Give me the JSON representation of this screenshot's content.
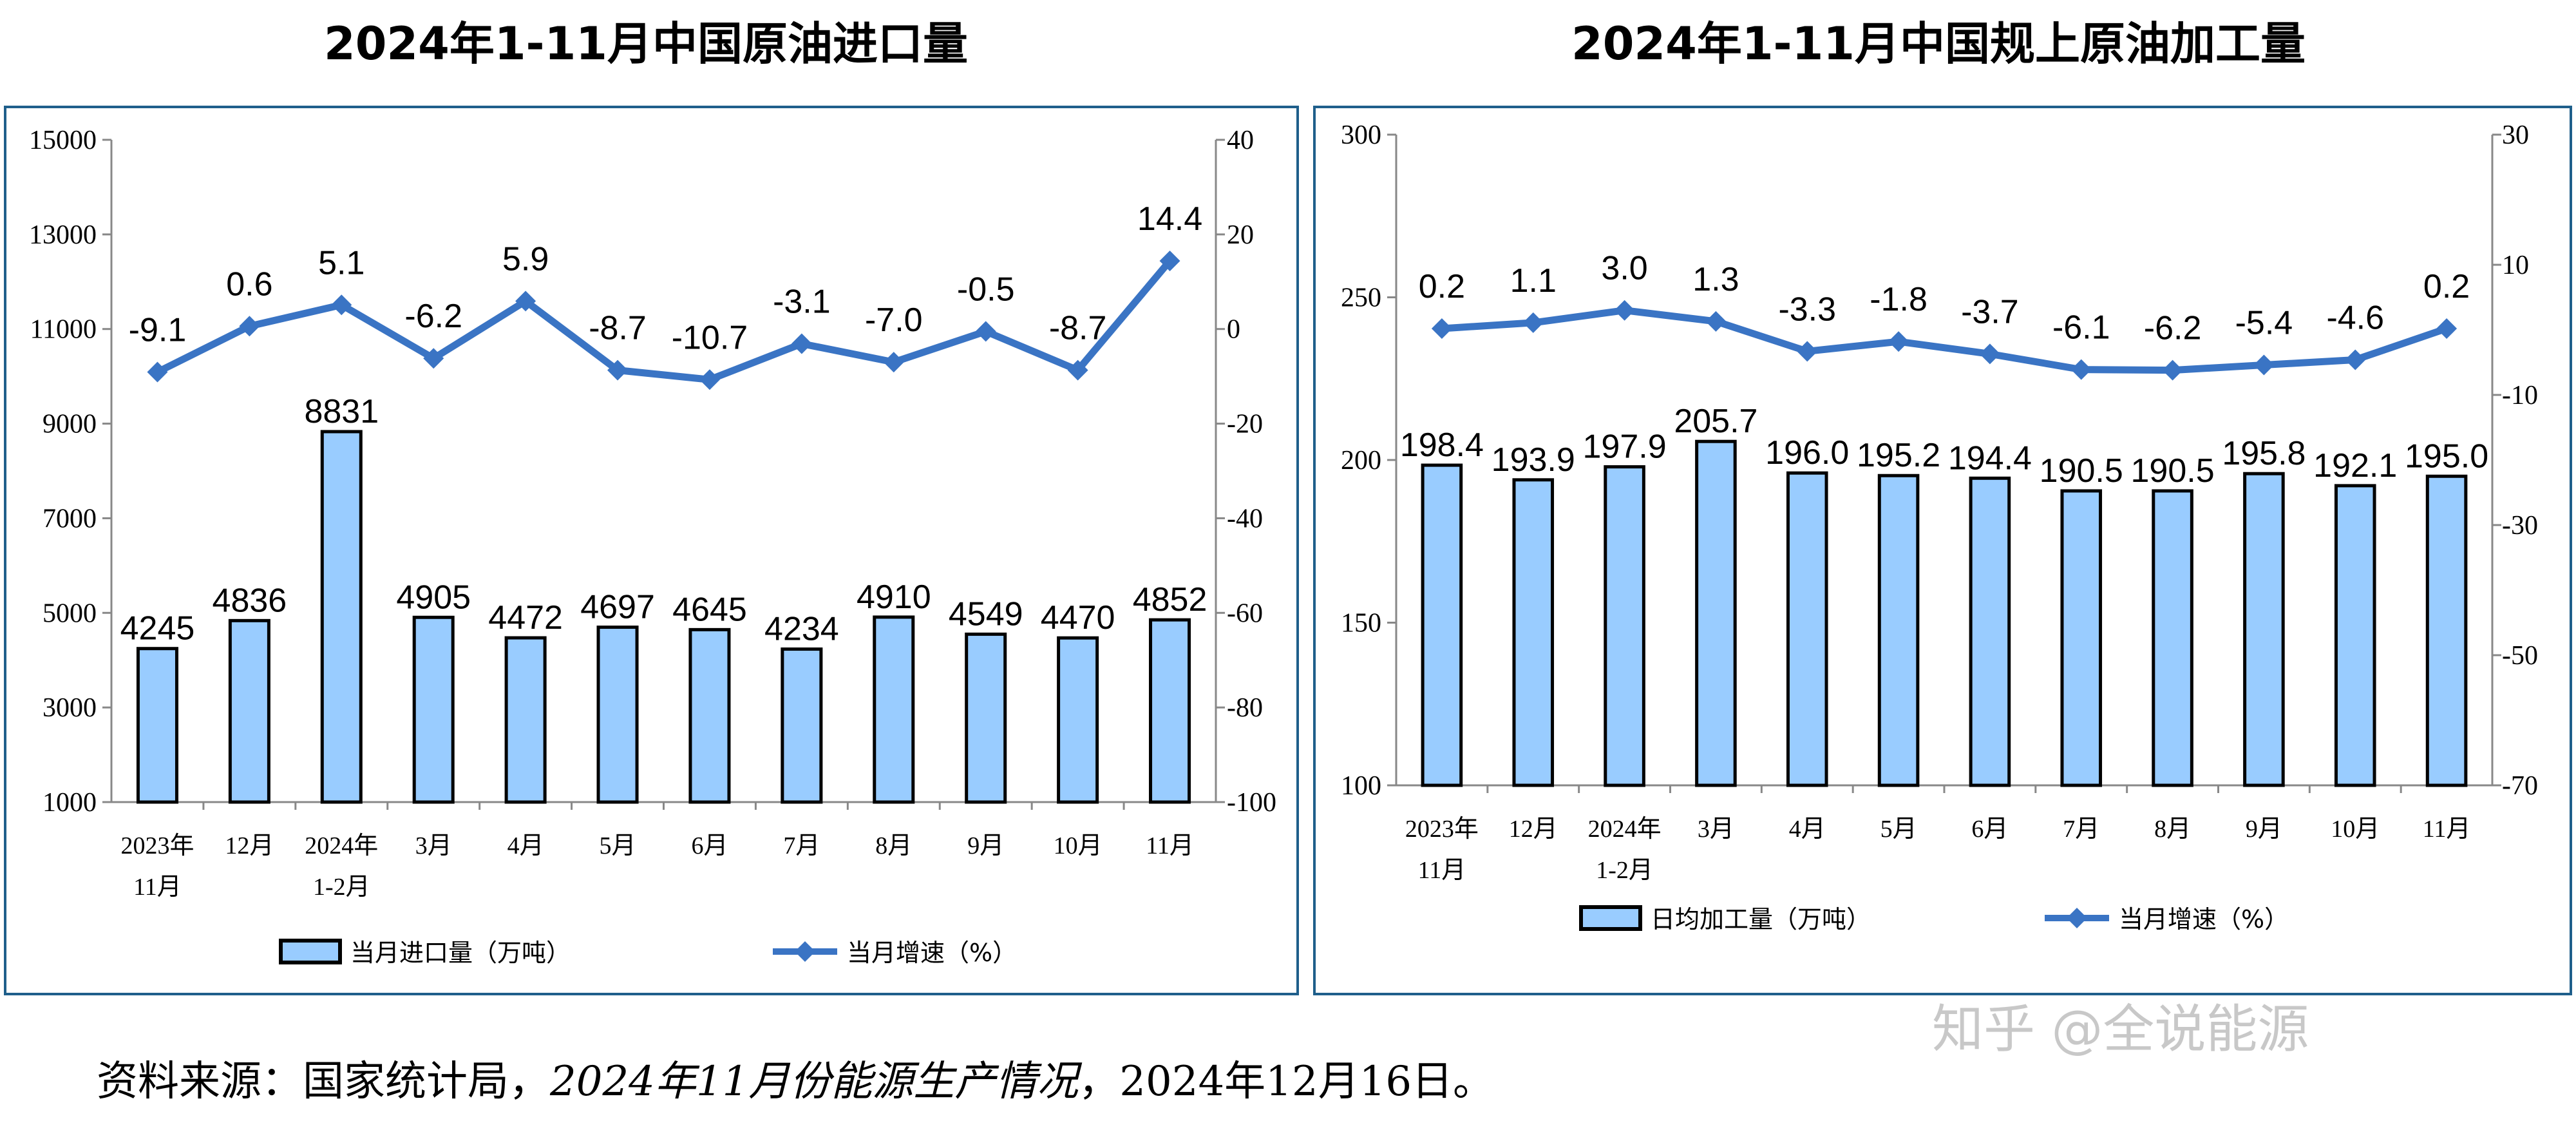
{
  "colors": {
    "bar_fill": "#99ccff",
    "bar_stroke": "#000000",
    "line": "#3a74c4",
    "panel_border": "#1f5f8b",
    "axis": "#888888"
  },
  "chart_data": [
    {
      "type": "bar+line",
      "title": "2024年1-11月中国原油进口量",
      "categories": [
        "2023年\n11月",
        "12月",
        "2024年\n1-2月",
        "3月",
        "4月",
        "5月",
        "6月",
        "7月",
        "8月",
        "9月",
        "10月",
        "11月"
      ],
      "y_left": {
        "range": [
          1000,
          15000
        ],
        "ticks": [
          1000,
          3000,
          5000,
          7000,
          9000,
          11000,
          13000,
          15000
        ]
      },
      "y_right": {
        "range": [
          -100,
          40
        ],
        "ticks": [
          -100,
          -80,
          -60,
          -40,
          -20,
          0,
          20,
          40
        ]
      },
      "series": [
        {
          "name": "当月进口量（万吨）",
          "type": "bar",
          "axis": "left",
          "values": [
            4245,
            4836,
            8831,
            4905,
            4472,
            4697,
            4645,
            4234,
            4910,
            4549,
            4470,
            4852
          ],
          "labels": [
            "4245",
            "4836",
            "8831",
            "4905",
            "4472",
            "4697",
            "4645",
            "4234",
            "4910",
            "4549",
            "4470",
            "4852"
          ]
        },
        {
          "name": "当月增速（%）",
          "type": "line",
          "axis": "right",
          "marker": "diamond",
          "values": [
            -9.1,
            0.6,
            5.1,
            -6.2,
            5.9,
            -8.7,
            -10.7,
            -3.1,
            -7.0,
            -0.5,
            -8.7,
            14.4
          ],
          "labels": [
            "-9.1",
            "0.6",
            "5.1",
            "-6.2",
            "5.9",
            "-8.7",
            "-10.7",
            "-3.1",
            "-7.0",
            "-0.5",
            "-8.7",
            "14.4"
          ]
        }
      ],
      "legend": "bottom",
      "grid": false
    },
    {
      "type": "bar+line",
      "title": "2024年1-11月中国规上原油加工量",
      "categories": [
        "2023年\n11月",
        "12月",
        "2024年\n1-2月",
        "3月",
        "4月",
        "5月",
        "6月",
        "7月",
        "8月",
        "9月",
        "10月",
        "11月"
      ],
      "y_left": {
        "range": [
          100,
          300
        ],
        "ticks": [
          100,
          150,
          200,
          250,
          300
        ]
      },
      "y_right": {
        "range": [
          -70,
          30
        ],
        "ticks": [
          -70,
          -50,
          -30,
          -10,
          10,
          30
        ]
      },
      "series": [
        {
          "name": "日均加工量（万吨）",
          "type": "bar",
          "axis": "left",
          "values": [
            198.4,
            193.9,
            197.9,
            205.7,
            196.0,
            195.2,
            194.4,
            190.5,
            190.5,
            195.8,
            192.1,
            195.0
          ],
          "labels": [
            "198.4",
            "193.9",
            "197.9",
            "205.7",
            "196.0",
            "195.2",
            "194.4",
            "190.5",
            "190.5",
            "195.8",
            "192.1",
            "195.0"
          ]
        },
        {
          "name": "当月增速（%）",
          "type": "line",
          "axis": "right",
          "marker": "diamond",
          "values": [
            0.2,
            1.1,
            3.0,
            1.3,
            -3.3,
            -1.8,
            -3.7,
            -6.1,
            -6.2,
            -5.4,
            -4.6,
            0.2
          ],
          "labels": [
            "0.2",
            "1.1",
            "3.0",
            "1.3",
            "-3.3",
            "-1.8",
            "-3.7",
            "-6.1",
            "-6.2",
            "-5.4",
            "-4.6",
            "0.2"
          ]
        }
      ],
      "legend": "bottom",
      "grid": false
    }
  ],
  "source": {
    "prefix": "资料来源：国家统计局，",
    "italic": "2024年11月份能源生产情况",
    "suffix": "，2024年12月16日。"
  },
  "watermark": "知乎 @全说能源"
}
